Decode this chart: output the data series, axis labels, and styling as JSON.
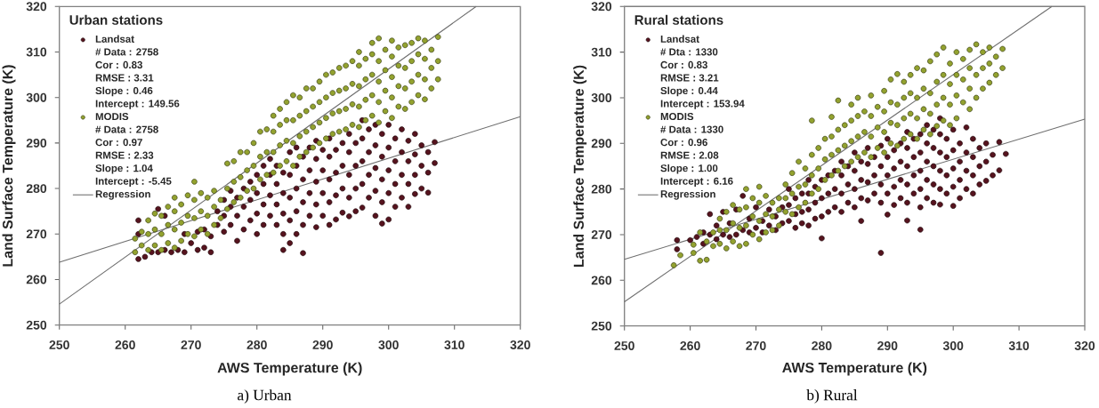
{
  "chart_data": [
    {
      "type": "scatter",
      "title": "a) Urban",
      "xlabel": "AWS Temperature (K)",
      "ylabel": "Land Surface Temperature (K)",
      "legend_title": "Urban stations",
      "legend": "top left",
      "marker": "circle",
      "xlim": [
        250,
        320
      ],
      "ylim": [
        250,
        320
      ],
      "xticks": [
        250,
        260,
        270,
        280,
        290,
        300,
        310,
        320
      ],
      "yticks": [
        250,
        260,
        270,
        280,
        290,
        300,
        310,
        320
      ],
      "annotations": [
        "# Data : 2758",
        "Cor : 0.83",
        "RMSE : 3.31",
        "Slope : 0.46",
        "Intercept : 149.56",
        "# Data : 2758",
        "Cor : 0.97",
        "RMSE : 2.33",
        "Slope : 1.04",
        "Intercept : -5.45"
      ],
      "series": [
        {
          "name": "Landsat",
          "color": "#56131E",
          "x": [
            262,
            262,
            262,
            263,
            264,
            265,
            265,
            266,
            266,
            267,
            268,
            269,
            269,
            270,
            271,
            271,
            272,
            272,
            273,
            273,
            274,
            274,
            275,
            275,
            275,
            276,
            276,
            276,
            277,
            277,
            277,
            278,
            278,
            278,
            279,
            279,
            279,
            280,
            280,
            280,
            280,
            281,
            281,
            281,
            281,
            282,
            282,
            282,
            282,
            283,
            283,
            283,
            283,
            284,
            284,
            284,
            284,
            284,
            285,
            285,
            285,
            285,
            285,
            286,
            286,
            286,
            286,
            286,
            287,
            287,
            287,
            287,
            287,
            288,
            288,
            288,
            288,
            289,
            289,
            289,
            289,
            289,
            290,
            290,
            290,
            290,
            291,
            291,
            291,
            291,
            291,
            292,
            292,
            292,
            292,
            293,
            293,
            293,
            293,
            294,
            294,
            294,
            294,
            294,
            295,
            295,
            295,
            295,
            296,
            296,
            296,
            296,
            296,
            297,
            297,
            297,
            297,
            298,
            298,
            298,
            298,
            298,
            299,
            299,
            299,
            299,
            299,
            300,
            300,
            300,
            300,
            300,
            301,
            301,
            301,
            301,
            302,
            302,
            302,
            302,
            303,
            303,
            303,
            303,
            304,
            304,
            304,
            304,
            305,
            305,
            305,
            306,
            306,
            306,
            307,
            307
          ],
          "values": [
            264.5,
            270,
            273,
            265,
            266,
            266,
            275.5,
            266.5,
            274,
            266,
            266.5,
            266,
            270,
            268,
            266.5,
            270.5,
            267,
            271,
            266,
            269.5,
            272,
            275,
            270.5,
            274,
            277.5,
            272,
            276,
            279.5,
            268.5,
            274,
            278,
            271,
            276,
            280,
            273,
            277.5,
            281.5,
            270,
            274.5,
            279,
            283,
            272,
            276.5,
            281,
            285,
            274,
            278.5,
            283,
            286.5,
            272,
            276.5,
            281,
            285,
            266.5,
            270,
            274.5,
            279,
            283.5,
            268,
            273,
            278,
            283,
            288,
            270,
            275,
            280,
            285,
            289,
            265.8,
            272,
            277,
            282,
            287,
            274,
            279,
            284,
            289,
            271.5,
            276.5,
            281.5,
            286.5,
            290.5,
            274,
            279,
            284,
            288.5,
            272,
            277,
            282,
            287,
            291,
            273.2,
            278.5,
            283.5,
            288.5,
            274.7,
            280,
            285,
            290,
            273.9,
            278,
            283,
            288,
            292,
            275,
            280,
            285,
            290,
            275.8,
            281,
            286,
            291,
            295,
            278,
            283,
            288,
            293,
            274,
            279.5,
            284.5,
            289.5,
            294,
            272.3,
            277,
            282,
            287,
            292,
            273.2,
            279,
            284,
            289,
            294,
            276,
            281,
            286,
            291,
            278,
            283,
            288,
            293,
            276,
            281,
            286,
            290.5,
            278.8,
            283,
            287.5,
            292,
            280,
            285,
            289.5,
            279.1,
            283.5,
            288,
            285.6,
            290.2
          ]
        },
        {
          "name": "MODIS",
          "color": "#93A22F",
          "x": [
            261.5,
            261.5,
            262.5,
            262.5,
            263.5,
            263.5,
            263.5,
            264.5,
            264.5,
            264.5,
            265.5,
            265.5,
            265.5,
            266.5,
            266.5,
            266.5,
            267.5,
            267.5,
            267.5,
            267.5,
            268.5,
            268.5,
            268.5,
            269.5,
            269.5,
            269.5,
            270.5,
            270.5,
            270.5,
            270.5,
            271.5,
            271.5,
            271.5,
            272.5,
            272.5,
            272.5,
            273.5,
            273.5,
            273.5,
            274.5,
            274.5,
            275.5,
            275.5,
            275.5,
            276.5,
            276.5,
            276.5,
            277.5,
            277.5,
            277.5,
            278.5,
            278.5,
            278.5,
            279.5,
            279.5,
            279.5,
            280.5,
            280.5,
            280.5,
            281.5,
            281.5,
            281.5,
            282.5,
            282.5,
            282.5,
            282.5,
            283.5,
            283.5,
            283.5,
            283.5,
            284.5,
            284.5,
            284.5,
            284.5,
            285.5,
            285.5,
            285.5,
            285.5,
            286.5,
            286.5,
            286.5,
            286.5,
            287.5,
            287.5,
            287.5,
            287.5,
            288.5,
            288.5,
            288.5,
            288.5,
            289.5,
            289.5,
            289.5,
            289.5,
            290.5,
            290.5,
            290.5,
            290.5,
            291.5,
            291.5,
            291.5,
            291.5,
            292.5,
            292.5,
            292.5,
            292.5,
            293.5,
            293.5,
            293.5,
            293.5,
            294.5,
            294.5,
            294.5,
            294.5,
            295.5,
            295.5,
            295.5,
            295.5,
            295.5,
            296.5,
            296.5,
            296.5,
            296.5,
            297.5,
            297.5,
            297.5,
            297.5,
            297.5,
            298.5,
            298.5,
            298.5,
            298.5,
            298.5,
            299.5,
            299.5,
            299.5,
            299.5,
            300.5,
            300.5,
            300.5,
            300.5,
            300.5,
            301.5,
            301.5,
            301.5,
            301.5,
            302.5,
            302.5,
            302.5,
            302.5,
            303.5,
            303.5,
            303.5,
            303.5,
            304.5,
            304.5,
            304.5,
            304.5,
            305.5,
            305.5,
            305.5,
            305.5,
            306.5,
            306.5,
            306.5,
            307.5,
            307.5,
            307.5
          ],
          "values": [
            266,
            269,
            267.5,
            270.5,
            266.5,
            270,
            273,
            267.5,
            271,
            274.5,
            266.5,
            270,
            274,
            268,
            272,
            276,
            267,
            271,
            275,
            278,
            268.5,
            272.5,
            276.5,
            270,
            274,
            278.5,
            269.5,
            273.5,
            277.5,
            281.5,
            271,
            275,
            279,
            270,
            274,
            278,
            272,
            276,
            279.5,
            273.5,
            277.5,
            275.5,
            280,
            285.5,
            277,
            281.5,
            286,
            278,
            282.5,
            288,
            279.5,
            284,
            288,
            280,
            285,
            290,
            282,
            287,
            292.5,
            283,
            288,
            293,
            283.5,
            288,
            292.5,
            296,
            285,
            289.5,
            294,
            297.5,
            286,
            290.5,
            295,
            299,
            285,
            290,
            295,
            300.5,
            287,
            291.5,
            296,
            300,
            288,
            292.5,
            297,
            302,
            289,
            293.5,
            298,
            302,
            290,
            294.5,
            299,
            303.5,
            291,
            295.5,
            300,
            305,
            292,
            296.5,
            301,
            305.5,
            292.5,
            297,
            301.5,
            306.5,
            293,
            297.5,
            302,
            307,
            294,
            298.5,
            303,
            308,
            293.5,
            298,
            302.5,
            307,
            310,
            295,
            299.5,
            304,
            308.5,
            296,
            300.5,
            305,
            309.5,
            312,
            294.5,
            299,
            303.5,
            308,
            313,
            297,
            301.5,
            306,
            310.5,
            295.5,
            300,
            304.5,
            309,
            312.5,
            298,
            302.5,
            307,
            311,
            297.5,
            302,
            306.5,
            311.5,
            299,
            303.5,
            308,
            312,
            300.5,
            305,
            309.5,
            313,
            299.6,
            304,
            308.5,
            312.5,
            302,
            306.5,
            310.5,
            304,
            308,
            313.3
          ]
        },
        {
          "name": "Regression",
          "type": "line",
          "marker": "none",
          "color": "#6E6E6E",
          "x": [
            250,
            320
          ],
          "values": [
            263.8,
            295.8
          ]
        },
        {
          "type": "line",
          "marker": "none",
          "color": "#6E6E6E",
          "x": [
            250,
            313.3
          ],
          "values": [
            254.6,
            320
          ]
        }
      ]
    },
    {
      "type": "scatter",
      "title": "b) Rural",
      "xlabel": "AWS Temperature (K)",
      "ylabel": "Land Surface Temperature (K)",
      "legend_title": "Rural stations",
      "legend": "top left",
      "marker": "circle",
      "xlim": [
        250,
        320
      ],
      "ylim": [
        250,
        320
      ],
      "xticks": [
        250,
        260,
        270,
        280,
        290,
        300,
        310,
        320
      ],
      "yticks": [
        250,
        260,
        270,
        280,
        290,
        300,
        310,
        320
      ],
      "annotations": [
        "# Dta : 1330",
        "Cor : 0.83",
        "RMSE : 3.21",
        "Slope : 0.44",
        "Intercept : 153.94",
        "# Data : 1330",
        "Cor : 0.96",
        "RMSE : 2.08",
        "Slope : 1.00",
        "Intercept : 6.16"
      ],
      "series": [
        {
          "name": "Landsat",
          "color": "#56131E",
          "x": [
            258,
            258,
            260,
            261,
            262,
            262,
            263,
            263,
            264,
            264,
            265,
            265,
            266,
            266,
            267,
            267,
            268,
            268,
            269,
            269,
            270,
            270,
            271,
            271,
            272,
            272,
            273,
            273,
            274,
            274,
            275,
            275,
            275,
            276,
            276,
            276,
            277,
            277,
            277,
            278,
            278,
            278,
            278,
            279,
            279,
            279,
            280,
            280,
            280,
            280,
            281,
            281,
            281,
            282,
            282,
            282,
            283,
            283,
            283,
            283,
            284,
            284,
            284,
            285,
            285,
            285,
            285,
            286,
            286,
            286,
            286,
            287,
            287,
            287,
            287,
            288,
            288,
            288,
            289,
            289,
            289,
            289,
            289,
            290,
            290,
            290,
            290,
            290,
            291,
            291,
            291,
            291,
            292,
            292,
            292,
            292,
            293,
            293,
            293,
            293,
            293,
            293,
            294,
            294,
            294,
            294,
            295,
            295,
            295,
            295,
            295,
            295,
            296,
            296,
            296,
            296,
            296,
            297,
            297,
            297,
            297,
            297,
            298,
            298,
            298,
            298,
            298,
            298,
            299,
            299,
            299,
            299,
            300,
            300,
            300,
            300,
            300,
            301,
            301,
            301,
            301,
            302,
            302,
            302,
            302,
            303,
            303,
            303,
            303,
            304,
            304,
            304,
            305,
            305,
            305,
            306,
            306,
            307,
            307,
            308
          ],
          "values": [
            266.8,
            268.8,
            268.8,
            269.5,
            268,
            270.5,
            270,
            274.5,
            269,
            272,
            270,
            275,
            269.5,
            272.5,
            270,
            275.5,
            271,
            278.5,
            270.5,
            273.5,
            271.5,
            276,
            270.5,
            273,
            272,
            275.5,
            271,
            274,
            272.5,
            276,
            273,
            276.5,
            280,
            271.5,
            274.5,
            278,
            272.5,
            275,
            279,
            272,
            275.5,
            279,
            282,
            273.5,
            277,
            280.5,
            269.2,
            274,
            278,
            282,
            275,
            279,
            283,
            276,
            280,
            284,
            275,
            279,
            283,
            286,
            277,
            281,
            285,
            276,
            280,
            284,
            288,
            273,
            278,
            282,
            286,
            277.5,
            281.5,
            285.5,
            289,
            279,
            283,
            287,
            266,
            277,
            281,
            285,
            289.5,
            274.4,
            279,
            283,
            287,
            291,
            276.5,
            280.5,
            284.5,
            288.5,
            278,
            282,
            286,
            290,
            273.1,
            277,
            281,
            285,
            289,
            292.5,
            279,
            283,
            287,
            291,
            271.1,
            276,
            280,
            284,
            288,
            292,
            278,
            282,
            286,
            290,
            294,
            277,
            281,
            285,
            289,
            293,
            276.6,
            280,
            284,
            288,
            292,
            295.5,
            279,
            283,
            287,
            291,
            276.3,
            280.5,
            284.5,
            288.5,
            293,
            278,
            282,
            286,
            290,
            280,
            284,
            288,
            293.5,
            279,
            283,
            287,
            291,
            281,
            285,
            289,
            281.8,
            286,
            290,
            283,
            287.5,
            284.1,
            290.3,
            287.7
          ]
        },
        {
          "name": "MODIS",
          "color": "#93A22F",
          "x": [
            257.5,
            258.5,
            260.5,
            260.5,
            261.5,
            261.5,
            262.5,
            262.5,
            263.5,
            263.5,
            264.5,
            264.5,
            264.5,
            265.5,
            265.5,
            265.5,
            266.5,
            266.5,
            266.5,
            267.5,
            267.5,
            267.5,
            268.5,
            268.5,
            268.5,
            268.5,
            269.5,
            269.5,
            269.5,
            270.5,
            270.5,
            270.5,
            270.5,
            271.5,
            271.5,
            271.5,
            272.5,
            272.5,
            272.5,
            273.5,
            273.5,
            273.5,
            274.5,
            274.5,
            274.5,
            275.5,
            275.5,
            275.5,
            276.5,
            276.5,
            276.5,
            277.5,
            277.5,
            277.5,
            278.5,
            278.5,
            278.5,
            278.5,
            279.5,
            279.5,
            279.5,
            280.5,
            280.5,
            280.5,
            281.5,
            281.5,
            281.5,
            281.5,
            282.5,
            282.5,
            282.5,
            282.5,
            283.5,
            283.5,
            283.5,
            284.5,
            284.5,
            284.5,
            284.5,
            285.5,
            285.5,
            285.5,
            285.5,
            286.5,
            286.5,
            286.5,
            287.5,
            287.5,
            287.5,
            287.5,
            288.5,
            288.5,
            288.5,
            289.5,
            289.5,
            289.5,
            289.5,
            290.5,
            290.5,
            290.5,
            290.5,
            291.5,
            291.5,
            291.5,
            291.5,
            292.5,
            292.5,
            292.5,
            292.5,
            293.5,
            293.5,
            293.5,
            293.5,
            294.5,
            294.5,
            294.5,
            294.5,
            295.5,
            295.5,
            295.5,
            295.5,
            296.5,
            296.5,
            296.5,
            296.5,
            297.5,
            297.5,
            297.5,
            297.5,
            298.5,
            298.5,
            298.5,
            298.5,
            299.5,
            299.5,
            299.5,
            299.5,
            300.5,
            300.5,
            300.5,
            300.5,
            301.5,
            301.5,
            301.5,
            302.5,
            302.5,
            302.5,
            302.5,
            303.5,
            303.5,
            303.5,
            304.5,
            304.5,
            304.5,
            305.5,
            305.5,
            305.5,
            306.5,
            306.5,
            307.5,
            307.5
          ],
          "values": [
            263.3,
            265.5,
            266,
            267.8,
            264.3,
            270.5,
            264.5,
            268.5,
            267.5,
            270.5,
            268,
            271,
            273.5,
            267,
            271,
            275,
            268.5,
            272.5,
            276.5,
            267.5,
            271.5,
            275.5,
            268,
            272,
            276,
            280,
            270,
            274,
            278,
            269,
            273,
            277,
            280.5,
            270.5,
            274.5,
            278.5,
            271,
            274,
            277,
            272,
            275.5,
            278,
            275,
            278,
            281,
            274.5,
            279,
            283.5,
            276,
            280.5,
            286,
            277,
            281,
            284.5,
            279,
            283,
            287.5,
            295,
            280,
            284.5,
            289,
            282,
            286.5,
            291,
            283,
            287.5,
            291.5,
            295.8,
            284,
            288.5,
            293,
            299.4,
            285,
            289.5,
            294,
            286,
            290.5,
            295,
            298.5,
            287,
            291.5,
            296,
            300,
            288,
            292.5,
            297,
            287,
            291.5,
            296,
            300.5,
            289,
            293.5,
            298,
            288,
            292.5,
            297,
            301.5,
            290,
            294.5,
            299,
            304,
            289.5,
            294,
            298.5,
            305.2,
            291,
            295.5,
            300,
            303.5,
            292,
            296.5,
            301,
            305,
            291,
            295.5,
            300,
            306.5,
            293,
            297.5,
            302,
            306,
            292,
            296.5,
            301,
            308,
            293.8,
            298.5,
            303.5,
            309.5,
            295,
            300,
            305,
            311,
            294,
            298.5,
            303,
            307.5,
            295.5,
            300.5,
            305,
            310,
            299,
            304,
            308.5,
            297.5,
            302,
            306.5,
            310.5,
            300,
            305,
            311.7,
            302,
            306.5,
            310,
            303.3,
            307.5,
            311,
            305,
            309,
            306.5,
            310.7
          ]
        },
        {
          "name": "Regression",
          "type": "line",
          "marker": "none",
          "color": "#6E6E6E",
          "x": [
            250,
            320
          ],
          "values": [
            264.6,
            295.3
          ]
        },
        {
          "type": "line",
          "marker": "none",
          "color": "#6E6E6E",
          "x": [
            250,
            315
          ],
          "values": [
            255.3,
            320
          ]
        }
      ]
    }
  ]
}
